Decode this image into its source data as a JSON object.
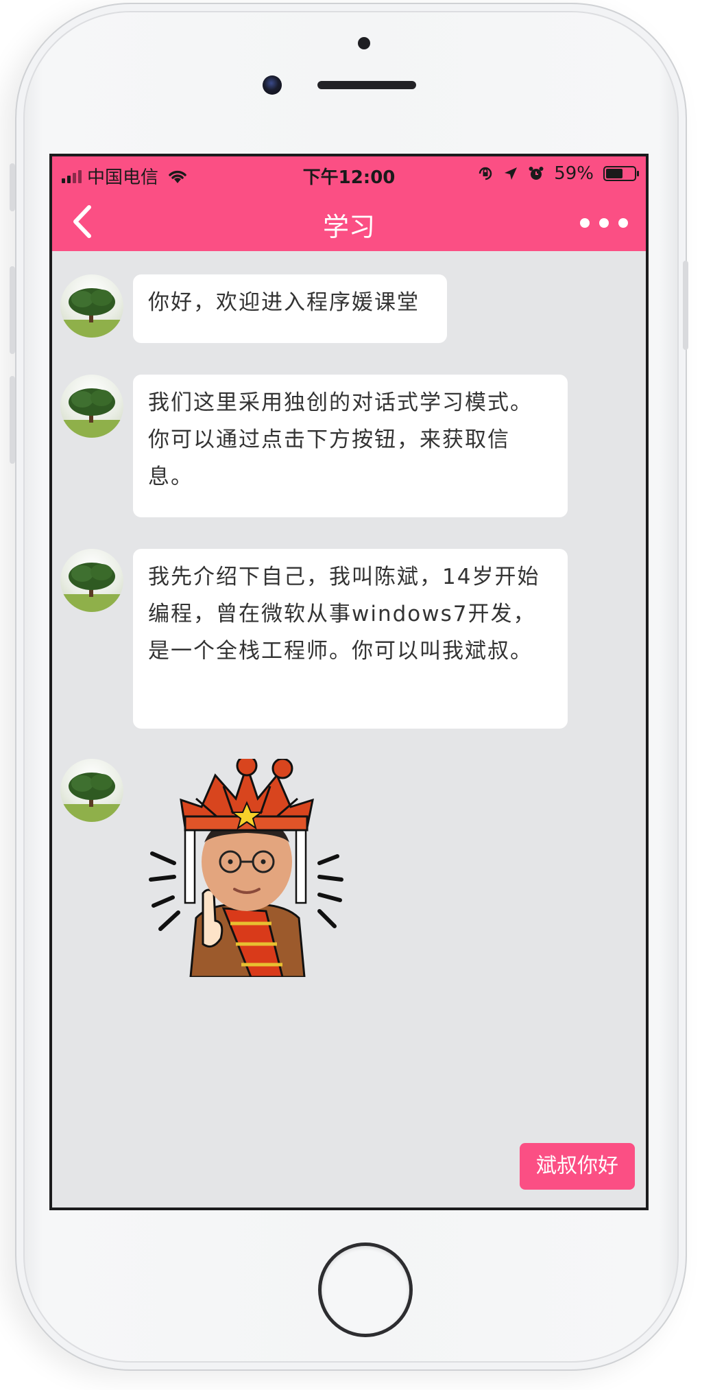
{
  "status_bar": {
    "carrier": "中国电信",
    "time": "下午12:00",
    "battery_percent": "59%",
    "battery_level": 0.59,
    "icons": [
      "signal-icon",
      "wifi-icon",
      "orientation-lock-icon",
      "location-icon",
      "alarm-icon",
      "battery-icon"
    ]
  },
  "nav": {
    "title": "学习",
    "back_icon": "chevron-left-icon",
    "more_icon": "more-dots-icon"
  },
  "messages": [
    {
      "type": "text",
      "text": "你好，欢迎进入程序媛课堂"
    },
    {
      "type": "text",
      "text": "我们这里采用独创的对话式学习模式。你可以通过点击下方按钮，来获取信息。"
    },
    {
      "type": "text",
      "text": "我先介绍下自己，我叫陈斌，14岁开始编程，曾在微软从事windows7开发，是一个全栈工程师。你可以叫我斌叔。"
    },
    {
      "type": "sticker",
      "sticker": "monk-sticker"
    }
  ],
  "reply_button": {
    "label": "斌叔你好"
  },
  "colors": {
    "accent": "#fb4f84",
    "chat_bg": "#e4e5e7",
    "bubble_bg": "#ffffff",
    "text": "#333333"
  }
}
